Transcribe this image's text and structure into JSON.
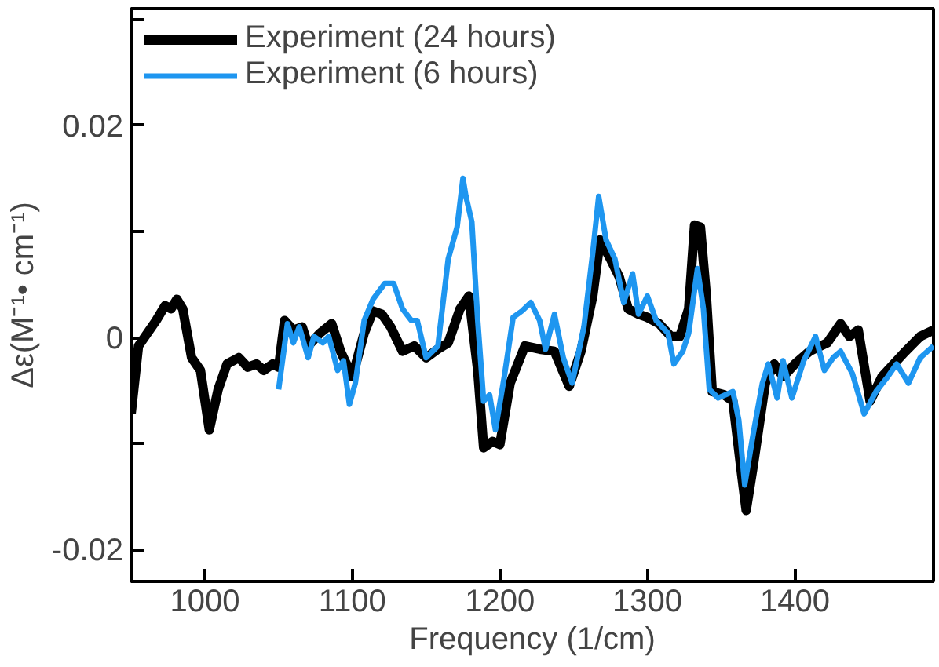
{
  "chart_data": {
    "type": "line",
    "xlabel": "Frequency (1/cm)",
    "ylabel": "Δε(M⁻¹• cm⁻¹)",
    "xlim": [
      950,
      1494
    ],
    "ylim": [
      -0.023,
      0.031
    ],
    "xticks": [
      1000,
      1100,
      1200,
      1300,
      1400
    ],
    "yticks": [
      {
        "value": -0.02,
        "label": "-0.02"
      },
      {
        "value": -0.01,
        "label": null
      },
      0,
      {
        "value": 0.01,
        "label": null
      },
      0.02,
      {
        "value": 0.03,
        "label": null
      }
    ],
    "grid": false,
    "legend": "top left",
    "marker": "none",
    "line_style": "solid",
    "series": [
      {
        "name": "Experiment (24 hours)",
        "color": "#000000",
        "x": [
          950,
          955,
          961,
          967,
          973,
          977,
          981,
          985,
          991,
          997,
          1003,
          1009,
          1015,
          1023,
          1029,
          1035,
          1040,
          1046,
          1050,
          1054,
          1060,
          1066,
          1070,
          1078,
          1086,
          1092,
          1100,
          1108,
          1114,
          1120,
          1126,
          1134,
          1142,
          1150,
          1158,
          1165,
          1173,
          1179,
          1185,
          1189,
          1195,
          1200,
          1207,
          1217,
          1227,
          1237,
          1247,
          1255,
          1263,
          1268,
          1275,
          1281,
          1287,
          1294,
          1300,
          1308,
          1316,
          1322,
          1328,
          1332,
          1336,
          1340,
          1344,
          1352,
          1358,
          1364,
          1367,
          1372,
          1380,
          1386,
          1392,
          1400,
          1410,
          1422,
          1431,
          1437,
          1443,
          1451,
          1459,
          1467,
          1475,
          1485,
          1494
        ],
        "values": [
          -0.0072,
          -0.0008,
          0.0004,
          0.0016,
          0.003,
          0.0027,
          0.0036,
          0.0027,
          -0.0019,
          -0.0031,
          -0.0087,
          -0.0049,
          -0.0025,
          -0.0019,
          -0.0028,
          -0.0025,
          -0.0031,
          -0.0025,
          -0.0028,
          0.0016,
          0.0007,
          0.001,
          -0.0008,
          0.0004,
          0.0013,
          -0.0013,
          -0.0037,
          0.0004,
          0.0025,
          0.0022,
          0.001,
          -0.0013,
          -0.0008,
          -0.0019,
          -0.0011,
          -0.0005,
          0.0027,
          0.0039,
          -0.0031,
          -0.0104,
          -0.0098,
          -0.0101,
          -0.0043,
          -0.0008,
          -0.0011,
          -0.0013,
          -0.0046,
          -0.0013,
          0.0039,
          0.0092,
          0.0074,
          0.0057,
          0.0027,
          0.0022,
          0.0019,
          0.0013,
          0.0001,
          0.0001,
          0.0027,
          0.0106,
          0.0104,
          0.0039,
          -0.0051,
          -0.0054,
          -0.006,
          -0.013,
          -0.0163,
          -0.0119,
          -0.0043,
          -0.0025,
          -0.0037,
          -0.0025,
          -0.0013,
          -0.0005,
          0.0013,
          0.0001,
          0.0007,
          -0.006,
          -0.0037,
          -0.0025,
          -0.0013,
          0.0001,
          0.0007
        ]
      },
      {
        "name": "Experiment (6 hours)",
        "color": "#1e96f0",
        "x": [
          1050,
          1056,
          1060,
          1064,
          1070,
          1074,
          1080,
          1084,
          1090,
          1094,
          1098,
          1102,
          1108,
          1114,
          1122,
          1128,
          1134,
          1140,
          1144,
          1150,
          1158,
          1165,
          1171,
          1175,
          1177,
          1181,
          1185,
          1189,
          1193,
          1197,
          1203,
          1209,
          1215,
          1221,
          1227,
          1231,
          1237,
          1243,
          1249,
          1257,
          1263,
          1267,
          1272,
          1278,
          1284,
          1290,
          1294,
          1300,
          1306,
          1314,
          1318,
          1324,
          1328,
          1334,
          1338,
          1342,
          1348,
          1358,
          1362,
          1366,
          1372,
          1378,
          1382,
          1388,
          1392,
          1398,
          1406,
          1414,
          1420,
          1426,
          1431,
          1439,
          1447,
          1455,
          1463,
          1469,
          1477,
          1485,
          1494
        ],
        "values": [
          -0.0049,
          0.0013,
          -0.0005,
          0.001,
          -0.0019,
          0.0001,
          -0.0005,
          0.0001,
          -0.0031,
          -0.0022,
          -0.0063,
          -0.0043,
          0.0016,
          0.0036,
          0.0051,
          0.0051,
          0.0027,
          0.0016,
          0.0016,
          -0.0019,
          -0.0008,
          0.0074,
          0.0104,
          0.015,
          0.0133,
          0.0109,
          0.0016,
          -0.006,
          -0.0054,
          -0.0087,
          -0.0037,
          0.0019,
          0.0025,
          0.0033,
          0.0016,
          -0.0011,
          0.0022,
          -0.0019,
          -0.0043,
          0.001,
          0.008,
          0.0133,
          0.0092,
          0.0074,
          0.0033,
          0.006,
          0.0022,
          0.0039,
          0.0016,
          0.0004,
          -0.0025,
          -0.0013,
          0.0004,
          0.0065,
          0.0027,
          -0.0049,
          -0.0057,
          -0.0051,
          -0.0078,
          -0.0139,
          -0.0089,
          -0.0043,
          -0.0025,
          -0.0057,
          -0.0022,
          -0.0057,
          -0.0022,
          0.0001,
          -0.0031,
          -0.0019,
          -0.0013,
          -0.0034,
          -0.0072,
          -0.0051,
          -0.0037,
          -0.0025,
          -0.0043,
          -0.0019,
          -0.0008
        ]
      }
    ]
  }
}
